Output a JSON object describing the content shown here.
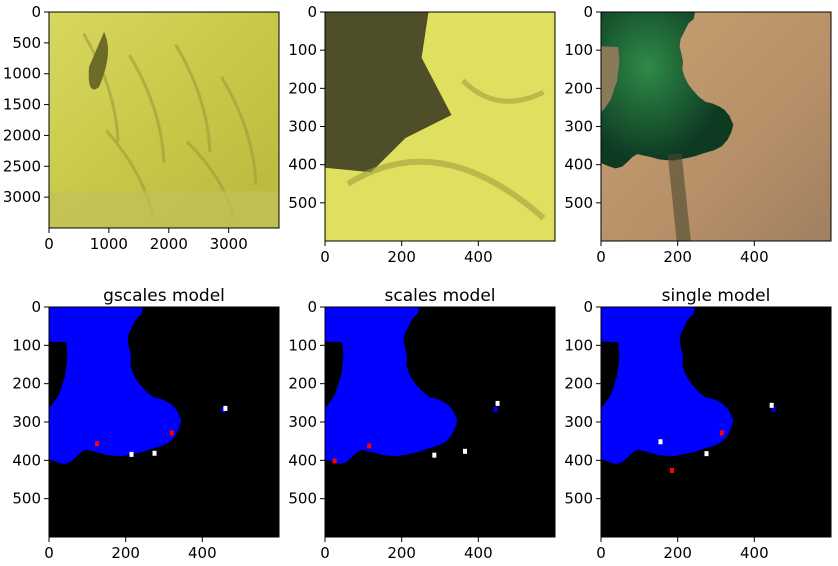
{
  "chart_data": [
    {
      "type": "image",
      "image_kind": "satellite-yellow",
      "title": "",
      "xlim": [
        0,
        3840
      ],
      "ylim": [
        3500,
        0
      ],
      "xticks": [
        0,
        1000,
        2000,
        3000
      ],
      "yticks": [
        0,
        500,
        1000,
        1500,
        2000,
        2500,
        3000
      ],
      "xtick_labels": [
        "0",
        "1000",
        "2000",
        "3000"
      ],
      "ytick_labels": [
        "0",
        "500",
        "1000",
        "1500",
        "2000",
        "2500",
        "3000"
      ]
    },
    {
      "type": "image",
      "image_kind": "satellite-yellow-zoom",
      "title": "",
      "xlim": [
        0,
        600
      ],
      "ylim": [
        600,
        0
      ],
      "xticks": [
        0,
        200,
        400
      ],
      "yticks": [
        0,
        100,
        200,
        300,
        400,
        500
      ],
      "xtick_labels": [
        "0",
        "200",
        "400"
      ],
      "ytick_labels": [
        "0",
        "100",
        "200",
        "300",
        "400",
        "500"
      ]
    },
    {
      "type": "image",
      "image_kind": "satellite-rgb",
      "title": "",
      "xlim": [
        0,
        600
      ],
      "ylim": [
        600,
        0
      ],
      "xticks": [
        0,
        200,
        400
      ],
      "yticks": [
        0,
        100,
        200,
        300,
        400,
        500
      ],
      "xtick_labels": [
        "0",
        "200",
        "400"
      ],
      "ytick_labels": [
        "0",
        "100",
        "200",
        "300",
        "400",
        "500"
      ]
    },
    {
      "type": "image",
      "image_kind": "mask",
      "title": "gscales model",
      "xlim": [
        0,
        600
      ],
      "ylim": [
        600,
        0
      ],
      "xticks": [
        0,
        200,
        400
      ],
      "yticks": [
        0,
        100,
        200,
        300,
        400,
        500
      ],
      "xtick_labels": [
        "0",
        "200",
        "400"
      ],
      "ytick_labels": [
        "0",
        "100",
        "200",
        "300",
        "400",
        "500"
      ],
      "colors": {
        "water": "#0000ff",
        "background": "#000000",
        "missed": "#ffffff",
        "false_alarm": "#ff0000"
      }
    },
    {
      "type": "image",
      "image_kind": "mask",
      "title": "scales model",
      "xlim": [
        0,
        600
      ],
      "ylim": [
        600,
        0
      ],
      "xticks": [
        0,
        200,
        400
      ],
      "yticks": [
        0,
        100,
        200,
        300,
        400,
        500
      ],
      "xtick_labels": [
        "0",
        "200",
        "400"
      ],
      "ytick_labels": [
        "0",
        "100",
        "200",
        "300",
        "400",
        "500"
      ],
      "colors": {
        "water": "#0000ff",
        "background": "#000000",
        "missed": "#ffffff",
        "false_alarm": "#ff0000"
      }
    },
    {
      "type": "image",
      "image_kind": "mask",
      "title": "single model",
      "xlim": [
        0,
        600
      ],
      "ylim": [
        600,
        0
      ],
      "xticks": [
        0,
        200,
        400
      ],
      "yticks": [
        0,
        100,
        200,
        300,
        400,
        500
      ],
      "xtick_labels": [
        "0",
        "200",
        "400"
      ],
      "ytick_labels": [
        "0",
        "100",
        "200",
        "300",
        "400",
        "500"
      ],
      "colors": {
        "water": "#0000ff",
        "background": "#000000",
        "missed": "#ffffff",
        "false_alarm": "#ff0000"
      }
    }
  ]
}
